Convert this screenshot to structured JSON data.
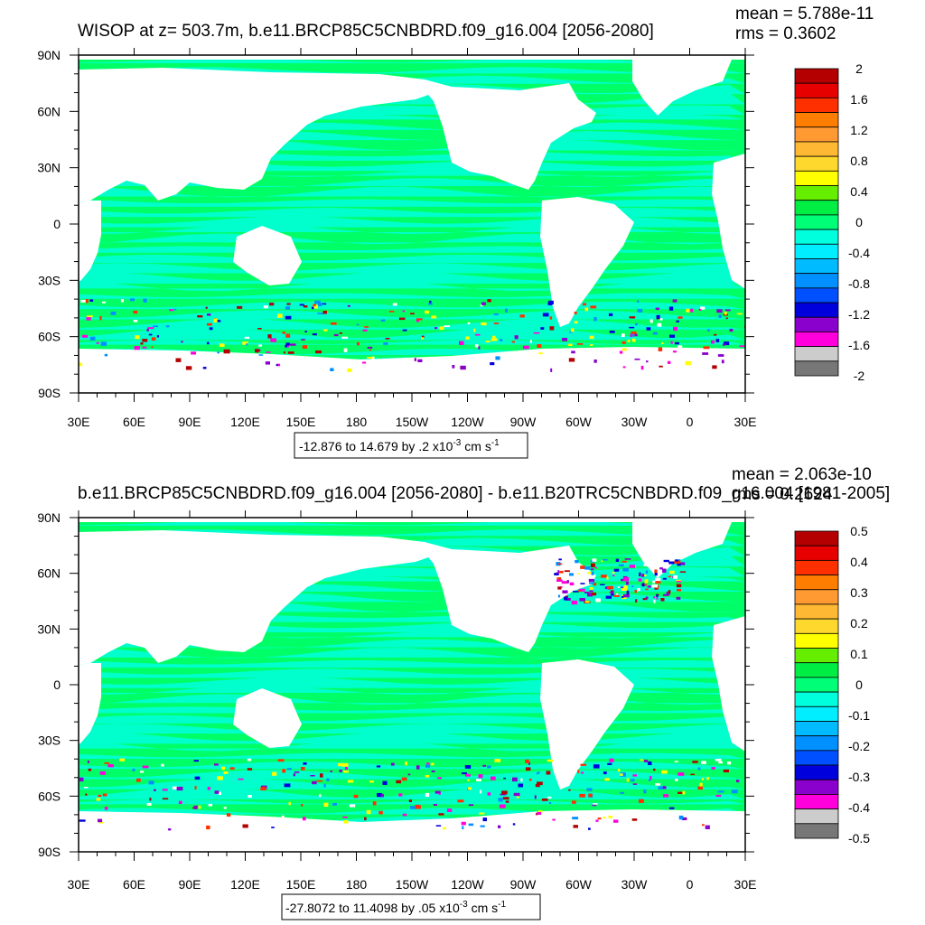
{
  "panels": [
    {
      "title": "WISOP at z= 503.7m, b.e11.BRCP85C5CNBDRD.f09_g16.004 [2056-2080]",
      "stat_mean": "mean = 5.788e-11",
      "stat_rms": "rms = 0.3602",
      "range_prefix": "-12.876 to 14.679 by .2 x10",
      "range_exp": "-3",
      "range_unit": " cm s",
      "range_unit_exp": "-1"
    },
    {
      "title": "b.e11.BRCP85C5CNBDRD.f09_g16.004 [2056-2080] - b.e11.B20TRC5CNBDRD.f09_g16.004 [1981-2005]",
      "stat_mean": "mean = 2.063e-10",
      "stat_rms": "rms = 0.2624",
      "range_prefix": "-27.8072 to 11.4098 by .05 x10",
      "range_exp": "-3",
      "range_unit": " cm s",
      "range_unit_exp": "-1"
    }
  ],
  "colors": {
    "ocean_base": "#00ff66",
    "ocean_band": "#00ffcc",
    "land": "#ffffff",
    "frame": "#000000"
  },
  "chart_data": [
    {
      "type": "heatmap",
      "title": "WISOP at z= 503.7m, b.e11.BRCP85C5CNBDRD.f09_g16.004 [2056-2080]",
      "xlabel": "",
      "ylabel": "",
      "x_ticks": [
        "30E",
        "60E",
        "90E",
        "120E",
        "150E",
        "180",
        "150W",
        "120W",
        "90W",
        "60W",
        "30W",
        "0",
        "30E"
      ],
      "y_ticks": [
        "90N",
        "60N",
        "30N",
        "0",
        "30S",
        "60S",
        "90S"
      ],
      "xlim": [
        30,
        390
      ],
      "ylim": [
        -90,
        90
      ],
      "colorbar_levels": [
        "2",
        "1.6",
        "1.2",
        "0.8",
        "0.4",
        "0",
        "-0.4",
        "-0.8",
        "-1.2",
        "-1.6",
        "-2"
      ],
      "colorbar_colors": [
        "#b40000",
        "#e60000",
        "#ff3000",
        "#ff7d00",
        "#ff9a33",
        "#ffb833",
        "#ffd82d",
        "#ffff00",
        "#66ee00",
        "#00ee44",
        "#00ff77",
        "#00ffdd",
        "#00eeff",
        "#00bbff",
        "#0090ff",
        "#0050ff",
        "#0000dd",
        "#8a00cc",
        "#ff00dd",
        "#cccccc",
        "#777777"
      ],
      "data_min": -12.876,
      "data_max": 14.679,
      "contour_interval": 0.2,
      "units": "x10^-3 cm s^-1",
      "mean": 5.788e-11,
      "rms": 0.3602
    },
    {
      "type": "heatmap",
      "title": "b.e11.BRCP85C5CNBDRD.f09_g16.004 [2056-2080] - b.e11.B20TRC5CNBDRD.f09_g16.004 [1981-2005]",
      "xlabel": "",
      "ylabel": "",
      "x_ticks": [
        "30E",
        "60E",
        "90E",
        "120E",
        "150E",
        "180",
        "150W",
        "120W",
        "90W",
        "60W",
        "30W",
        "0",
        "30E"
      ],
      "y_ticks": [
        "90N",
        "60N",
        "30N",
        "0",
        "30S",
        "60S",
        "90S"
      ],
      "xlim": [
        30,
        390
      ],
      "ylim": [
        -90,
        90
      ],
      "colorbar_levels": [
        "0.5",
        "0.4",
        "0.3",
        "0.2",
        "0.1",
        "0",
        "-0.1",
        "-0.2",
        "-0.3",
        "-0.4",
        "-0.5"
      ],
      "colorbar_colors": [
        "#b40000",
        "#e60000",
        "#ff3000",
        "#ff7d00",
        "#ff9a33",
        "#ffb833",
        "#ffd82d",
        "#ffff00",
        "#66ee00",
        "#00ee44",
        "#00ff77",
        "#00ffdd",
        "#00eeff",
        "#00bbff",
        "#0090ff",
        "#0050ff",
        "#0000dd",
        "#8a00cc",
        "#ff00dd",
        "#cccccc",
        "#777777"
      ],
      "data_min": -27.8072,
      "data_max": 11.4098,
      "contour_interval": 0.05,
      "units": "x10^-3 cm s^-1",
      "mean": 2.063e-10,
      "rms": 0.2624
    }
  ]
}
